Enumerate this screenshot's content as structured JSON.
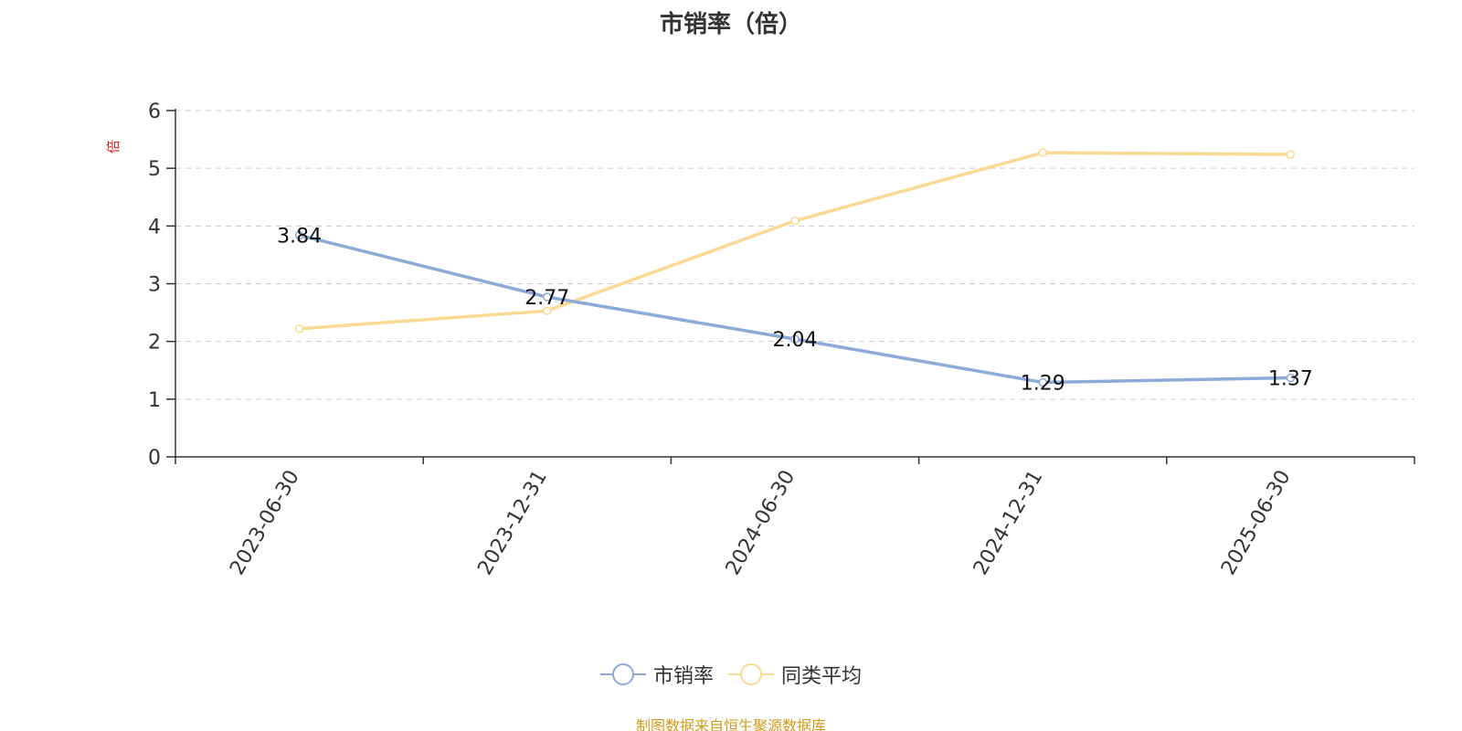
{
  "chart_data": {
    "type": "line",
    "title": "市销率（倍）",
    "ylabel": "倍",
    "xlabel": "",
    "categories": [
      "2023-06-30",
      "2023-12-31",
      "2024-06-30",
      "2024-12-31",
      "2025-06-30"
    ],
    "ylim": [
      0,
      6
    ],
    "yticks": [
      0,
      1,
      2,
      3,
      4,
      5,
      6
    ],
    "grid": true,
    "legend_position": "bottom",
    "series": [
      {
        "name": "市销率",
        "color": "#8eaad8",
        "values": [
          3.84,
          2.77,
          2.04,
          1.29,
          1.37
        ],
        "data_labels": [
          "3.84",
          "2.77",
          "2.04",
          "1.29",
          "1.37"
        ]
      },
      {
        "name": "同类平均",
        "color": "#fad993",
        "values": [
          2.22,
          2.53,
          4.09,
          5.27,
          5.24
        ]
      }
    ]
  },
  "source_note": "制图数据来自恒生聚源数据库",
  "colors": {
    "unit_label": "#e02020",
    "source_note": "#d19a1a",
    "grid": "#cccccc",
    "axis": "#333333"
  }
}
